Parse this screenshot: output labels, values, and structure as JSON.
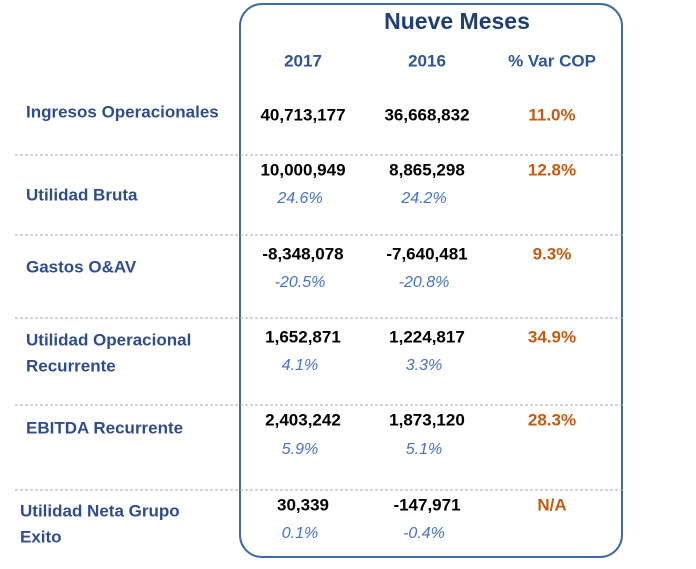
{
  "table": {
    "title": "Nueve Meses",
    "columns": [
      "2017",
      "2016",
      "% Var COP"
    ],
    "rows": [
      {
        "label": [
          "Ingresos Operacionales"
        ],
        "values": [
          "40,713,177",
          "36,668,832",
          "11.0%"
        ]
      },
      {
        "label": [
          "Utilidad Bruta"
        ],
        "values": [
          "10,000,949",
          "8,865,298",
          "12.8%"
        ],
        "margins": [
          "24.6%",
          "24.2%"
        ]
      },
      {
        "label": [
          "Gastos O&AV"
        ],
        "values": [
          "-8,348,078",
          "-7,640,481",
          "9.3%"
        ],
        "margins": [
          "-20.5%",
          "-20.8%"
        ]
      },
      {
        "label": [
          "Utilidad Operacional",
          "Recurrente"
        ],
        "values": [
          "1,652,871",
          "1,224,817",
          "34.9%"
        ],
        "margins": [
          "4.1%",
          "3.3%"
        ]
      },
      {
        "label": [
          "EBITDA Recurrente"
        ],
        "values": [
          "2,403,242",
          "1,873,120",
          "28.3%"
        ],
        "margins": [
          "5.9%",
          "5.1%"
        ]
      },
      {
        "label": [
          "Utilidad Neta Grupo",
          "Exito"
        ],
        "values": [
          "30,339",
          "-147,971",
          "N/A"
        ],
        "margins": [
          "0.1%",
          "-0.4%"
        ]
      }
    ]
  }
}
